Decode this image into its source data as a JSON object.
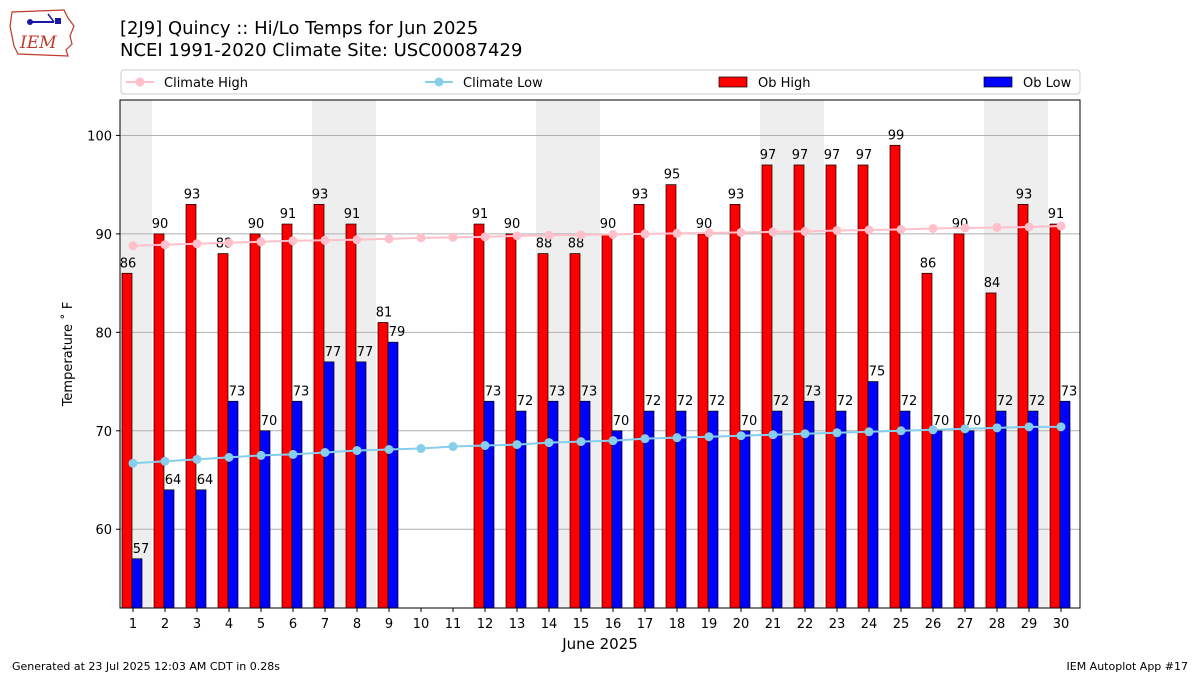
{
  "header": {
    "title_line1": "[2J9] Quincy :: Hi/Lo Temps for Jun 2025",
    "title_line2": "NCEI 1991-2020 Climate Site: USC00087429",
    "logo_text": "IEM"
  },
  "footer": {
    "left": "Generated at 23 Jul 2025 12:03 AM CDT in 0.28s",
    "right": "IEM Autoplot App #17"
  },
  "colors": {
    "ob_high": "#ff0000",
    "ob_low": "#0000ff",
    "climate_high": "#ffc0cb",
    "climate_low": "#87ceeb",
    "weekend_shade": "#eeeeee",
    "grid": "#b0b0b0"
  },
  "chart_data": {
    "type": "bar",
    "xlabel": "June 2025",
    "ylabel": "Temperature ˚ F",
    "ylim": [
      52,
      103.6
    ],
    "yticks": [
      60,
      70,
      80,
      90,
      100
    ],
    "grid": "horizontal",
    "legend_position": "top",
    "weekend_shaded_days": [
      1,
      7,
      8,
      14,
      15,
      21,
      22,
      28,
      29
    ],
    "categories": [
      "1",
      "2",
      "3",
      "4",
      "5",
      "6",
      "7",
      "8",
      "9",
      "10",
      "11",
      "12",
      "13",
      "14",
      "15",
      "16",
      "17",
      "18",
      "19",
      "20",
      "21",
      "22",
      "23",
      "24",
      "25",
      "26",
      "27",
      "28",
      "29",
      "30"
    ],
    "series": [
      {
        "name": "Ob High",
        "kind": "bar",
        "values": [
          86,
          90,
          93,
          88,
          90,
          91,
          93,
          91,
          81,
          null,
          null,
          91,
          90,
          88,
          88,
          90,
          93,
          95,
          90,
          93,
          97,
          97,
          97,
          97,
          99,
          86,
          90,
          84,
          93,
          91
        ]
      },
      {
        "name": "Ob Low",
        "kind": "bar",
        "values": [
          57,
          64,
          64,
          73,
          70,
          73,
          77,
          77,
          79,
          null,
          null,
          73,
          72,
          73,
          73,
          70,
          72,
          72,
          72,
          70,
          72,
          73,
          72,
          75,
          72,
          70,
          70,
          72,
          72,
          73
        ]
      },
      {
        "name": "Climate High",
        "kind": "line",
        "values": [
          88.8,
          88.9,
          89.0,
          89.1,
          89.2,
          89.3,
          89.35,
          89.4,
          89.5,
          89.6,
          89.65,
          89.7,
          89.8,
          89.85,
          89.9,
          89.95,
          90.0,
          90.05,
          90.1,
          90.15,
          90.2,
          90.25,
          90.35,
          90.4,
          90.45,
          90.55,
          90.6,
          90.65,
          90.7,
          90.8
        ]
      },
      {
        "name": "Climate Low",
        "kind": "line",
        "values": [
          66.7,
          66.9,
          67.1,
          67.3,
          67.5,
          67.6,
          67.8,
          68.0,
          68.1,
          68.2,
          68.4,
          68.5,
          68.6,
          68.8,
          68.9,
          69.0,
          69.2,
          69.3,
          69.4,
          69.5,
          69.6,
          69.7,
          69.8,
          69.9,
          70.0,
          70.1,
          70.2,
          70.3,
          70.4,
          70.4
        ]
      }
    ]
  }
}
